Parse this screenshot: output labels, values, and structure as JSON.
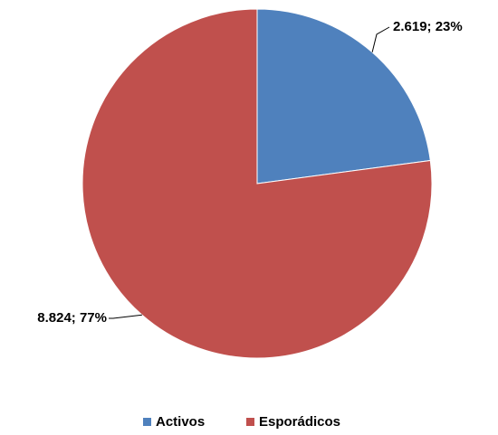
{
  "chart_data": {
    "type": "pie",
    "categories": [
      "Activos",
      "Esporádicos"
    ],
    "values": [
      2619,
      8824
    ],
    "value_labels": [
      "2.619; 23%",
      "8.824; 77%"
    ],
    "colors": [
      "#4f81bd",
      "#c0504d"
    ],
    "legend": "bottom"
  }
}
